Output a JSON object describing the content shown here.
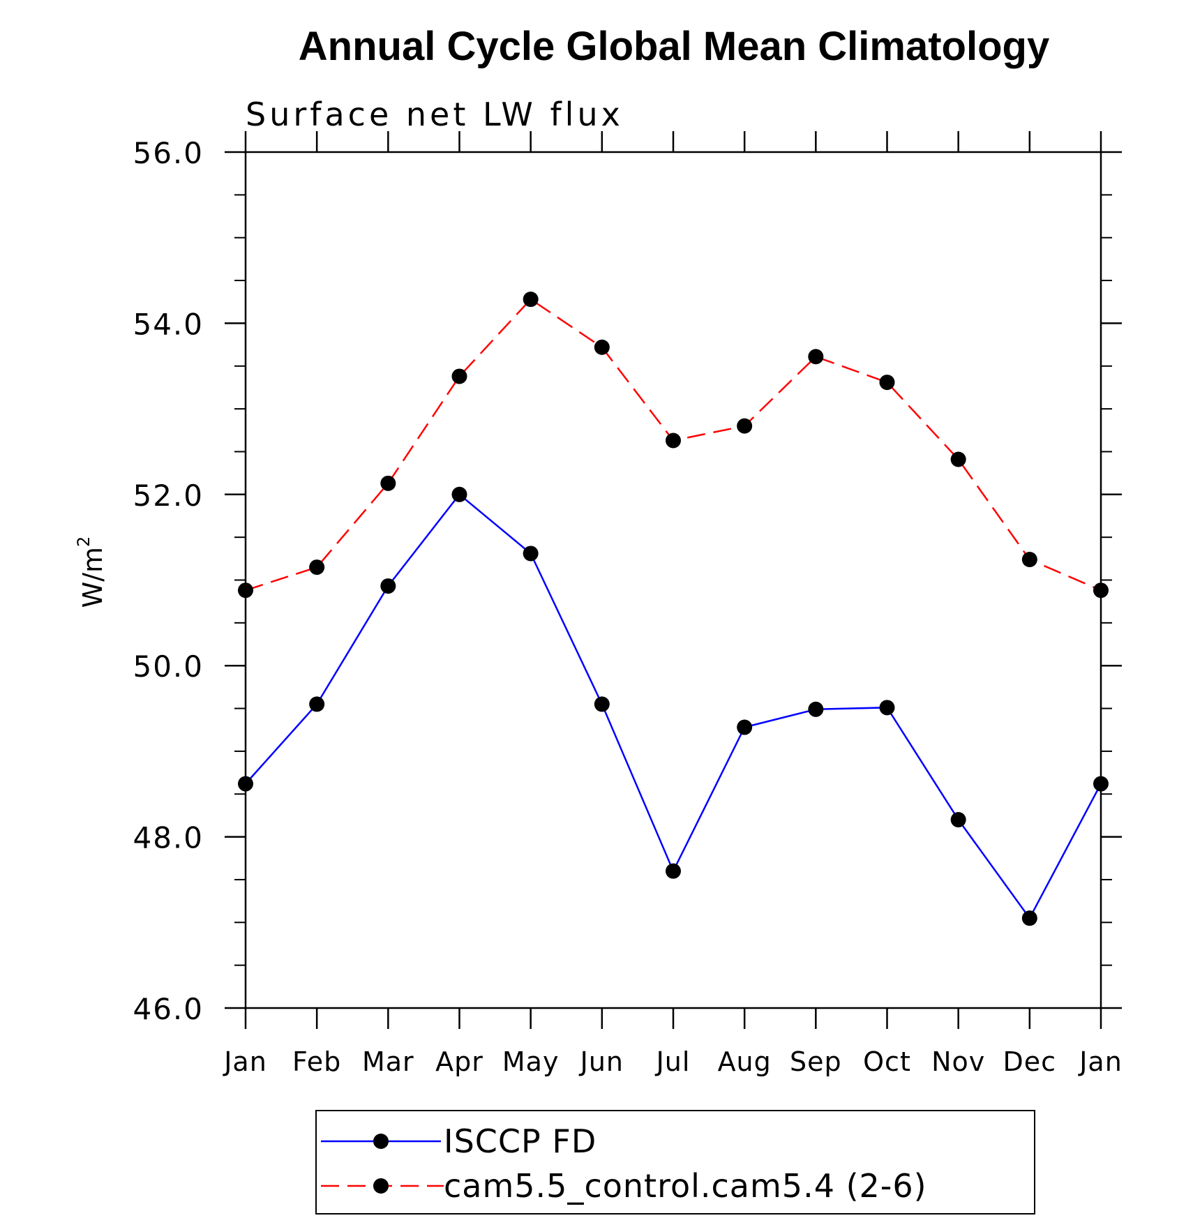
{
  "chart_data": {
    "type": "line",
    "title": "Annual Cycle Global Mean Climatology",
    "subtitle": "Surface net LW flux",
    "ylabel_main": "W/m",
    "ylabel_sup": "2",
    "categories": [
      "Jan",
      "Feb",
      "Mar",
      "Apr",
      "May",
      "Jun",
      "Jul",
      "Aug",
      "Sep",
      "Oct",
      "Nov",
      "Dec",
      "Jan"
    ],
    "ylim": [
      46.0,
      56.0
    ],
    "yticks": [
      "46.0",
      "48.0",
      "50.0",
      "52.0",
      "54.0",
      "56.0"
    ],
    "series": [
      {
        "name": "ISCCP FD",
        "color": "#0000ff",
        "dash": "solid",
        "values": [
          48.62,
          49.55,
          50.93,
          52.0,
          51.31,
          49.55,
          47.6,
          49.28,
          49.49,
          49.51,
          48.2,
          47.05,
          48.62
        ]
      },
      {
        "name": "cam5.5_control.cam5.4 (2-6)",
        "color": "#ff0000",
        "dash": "dashed",
        "values": [
          50.88,
          51.15,
          52.13,
          53.38,
          54.28,
          53.72,
          52.63,
          52.8,
          53.61,
          53.31,
          52.41,
          51.24,
          50.88
        ]
      }
    ],
    "legend_position": "bottom",
    "grid": false
  }
}
